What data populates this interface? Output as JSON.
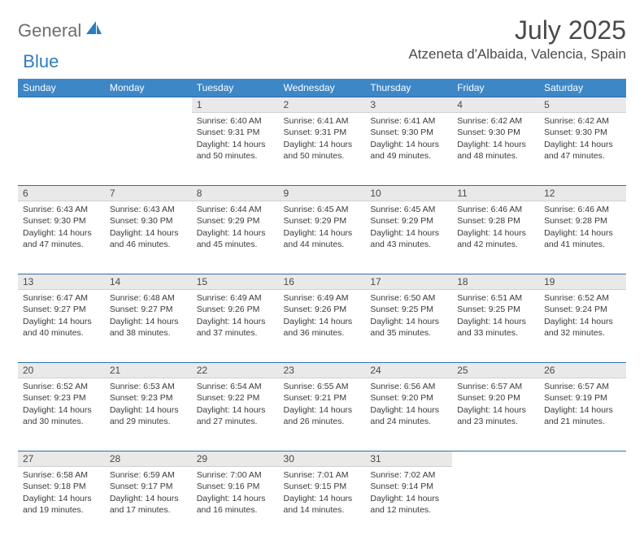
{
  "brand": {
    "general": "General",
    "blue": "Blue"
  },
  "title": "July 2025",
  "location": "Atzeneta d'Albaida, Valencia, Spain",
  "colors": {
    "header_bg": "#3d87c7",
    "header_fg": "#ffffff",
    "daynum_bg": "#e9e9e9",
    "rule": "#2f6fa8",
    "text": "#3a3a3a",
    "title": "#4a4a4a",
    "logo_gray": "#6e6e6e",
    "logo_blue": "#2f7bbf"
  },
  "weekdays": [
    "Sunday",
    "Monday",
    "Tuesday",
    "Wednesday",
    "Thursday",
    "Friday",
    "Saturday"
  ],
  "weeks": [
    [
      null,
      null,
      {
        "n": "1",
        "sunrise": "6:40 AM",
        "sunset": "9:31 PM",
        "dl": "14 hours and 50 minutes."
      },
      {
        "n": "2",
        "sunrise": "6:41 AM",
        "sunset": "9:31 PM",
        "dl": "14 hours and 50 minutes."
      },
      {
        "n": "3",
        "sunrise": "6:41 AM",
        "sunset": "9:30 PM",
        "dl": "14 hours and 49 minutes."
      },
      {
        "n": "4",
        "sunrise": "6:42 AM",
        "sunset": "9:30 PM",
        "dl": "14 hours and 48 minutes."
      },
      {
        "n": "5",
        "sunrise": "6:42 AM",
        "sunset": "9:30 PM",
        "dl": "14 hours and 47 minutes."
      }
    ],
    [
      {
        "n": "6",
        "sunrise": "6:43 AM",
        "sunset": "9:30 PM",
        "dl": "14 hours and 47 minutes."
      },
      {
        "n": "7",
        "sunrise": "6:43 AM",
        "sunset": "9:30 PM",
        "dl": "14 hours and 46 minutes."
      },
      {
        "n": "8",
        "sunrise": "6:44 AM",
        "sunset": "9:29 PM",
        "dl": "14 hours and 45 minutes."
      },
      {
        "n": "9",
        "sunrise": "6:45 AM",
        "sunset": "9:29 PM",
        "dl": "14 hours and 44 minutes."
      },
      {
        "n": "10",
        "sunrise": "6:45 AM",
        "sunset": "9:29 PM",
        "dl": "14 hours and 43 minutes."
      },
      {
        "n": "11",
        "sunrise": "6:46 AM",
        "sunset": "9:28 PM",
        "dl": "14 hours and 42 minutes."
      },
      {
        "n": "12",
        "sunrise": "6:46 AM",
        "sunset": "9:28 PM",
        "dl": "14 hours and 41 minutes."
      }
    ],
    [
      {
        "n": "13",
        "sunrise": "6:47 AM",
        "sunset": "9:27 PM",
        "dl": "14 hours and 40 minutes."
      },
      {
        "n": "14",
        "sunrise": "6:48 AM",
        "sunset": "9:27 PM",
        "dl": "14 hours and 38 minutes."
      },
      {
        "n": "15",
        "sunrise": "6:49 AM",
        "sunset": "9:26 PM",
        "dl": "14 hours and 37 minutes."
      },
      {
        "n": "16",
        "sunrise": "6:49 AM",
        "sunset": "9:26 PM",
        "dl": "14 hours and 36 minutes."
      },
      {
        "n": "17",
        "sunrise": "6:50 AM",
        "sunset": "9:25 PM",
        "dl": "14 hours and 35 minutes."
      },
      {
        "n": "18",
        "sunrise": "6:51 AM",
        "sunset": "9:25 PM",
        "dl": "14 hours and 33 minutes."
      },
      {
        "n": "19",
        "sunrise": "6:52 AM",
        "sunset": "9:24 PM",
        "dl": "14 hours and 32 minutes."
      }
    ],
    [
      {
        "n": "20",
        "sunrise": "6:52 AM",
        "sunset": "9:23 PM",
        "dl": "14 hours and 30 minutes."
      },
      {
        "n": "21",
        "sunrise": "6:53 AM",
        "sunset": "9:23 PM",
        "dl": "14 hours and 29 minutes."
      },
      {
        "n": "22",
        "sunrise": "6:54 AM",
        "sunset": "9:22 PM",
        "dl": "14 hours and 27 minutes."
      },
      {
        "n": "23",
        "sunrise": "6:55 AM",
        "sunset": "9:21 PM",
        "dl": "14 hours and 26 minutes."
      },
      {
        "n": "24",
        "sunrise": "6:56 AM",
        "sunset": "9:20 PM",
        "dl": "14 hours and 24 minutes."
      },
      {
        "n": "25",
        "sunrise": "6:57 AM",
        "sunset": "9:20 PM",
        "dl": "14 hours and 23 minutes."
      },
      {
        "n": "26",
        "sunrise": "6:57 AM",
        "sunset": "9:19 PM",
        "dl": "14 hours and 21 minutes."
      }
    ],
    [
      {
        "n": "27",
        "sunrise": "6:58 AM",
        "sunset": "9:18 PM",
        "dl": "14 hours and 19 minutes."
      },
      {
        "n": "28",
        "sunrise": "6:59 AM",
        "sunset": "9:17 PM",
        "dl": "14 hours and 17 minutes."
      },
      {
        "n": "29",
        "sunrise": "7:00 AM",
        "sunset": "9:16 PM",
        "dl": "14 hours and 16 minutes."
      },
      {
        "n": "30",
        "sunrise": "7:01 AM",
        "sunset": "9:15 PM",
        "dl": "14 hours and 14 minutes."
      },
      {
        "n": "31",
        "sunrise": "7:02 AM",
        "sunset": "9:14 PM",
        "dl": "14 hours and 12 minutes."
      },
      null,
      null
    ]
  ],
  "labels": {
    "sunrise": "Sunrise:",
    "sunset": "Sunset:",
    "daylight": "Daylight:"
  }
}
